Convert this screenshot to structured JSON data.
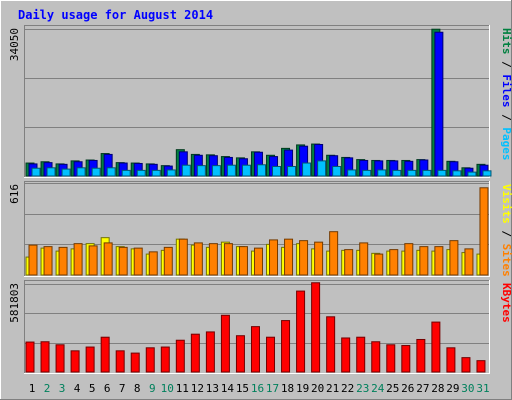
{
  "chart_data": {
    "type": "bar",
    "title": "Daily usage for August 2014",
    "categories": [
      "1",
      "2",
      "3",
      "4",
      "5",
      "6",
      "7",
      "8",
      "9",
      "10",
      "11",
      "12",
      "13",
      "14",
      "15",
      "16",
      "17",
      "18",
      "19",
      "20",
      "21",
      "22",
      "23",
      "24",
      "25",
      "26",
      "27",
      "28",
      "29",
      "30",
      "31"
    ],
    "weekend_days": [
      "2",
      "3",
      "9",
      "10",
      "16",
      "17",
      "23",
      "24",
      "30",
      "31"
    ],
    "panels": [
      {
        "id": "hits",
        "ymax_label": "34050",
        "ymax": 34050,
        "legend": [
          "Hits",
          "Files",
          "Pages"
        ],
        "series": [
          {
            "name": "Hits",
            "color": "#008040",
            "values": [
              3000,
              3300,
              2800,
              3500,
              3700,
              5200,
              3100,
              3000,
              2800,
              2400,
              6100,
              5000,
              4900,
              4500,
              4200,
              5600,
              4800,
              6400,
              7200,
              7400,
              4800,
              4300,
              3800,
              3600,
              3600,
              3600,
              3800,
              34000,
              3400,
              1900,
              2700
            ]
          },
          {
            "name": "Files",
            "color": "#0000ff",
            "values": [
              2800,
              3100,
              2700,
              3300,
              3600,
              5000,
              3000,
              2900,
              2700,
              2300,
              5600,
              4800,
              4700,
              4300,
              4000,
              5500,
              4500,
              6000,
              6900,
              7300,
              4700,
              4200,
              3600,
              3500,
              3500,
              3400,
              3700,
              33300,
              3300,
              1800,
              2500
            ]
          },
          {
            "name": "Pages",
            "color": "#00c0ff",
            "values": [
              1800,
              1900,
              1600,
              1900,
              1800,
              1900,
              1300,
              1300,
              1300,
              1400,
              2500,
              2400,
              2400,
              2500,
              2500,
              2600,
              2200,
              2200,
              3000,
              3500,
              2200,
              1400,
              1300,
              1400,
              1300,
              1300,
              1300,
              1300,
              1200,
              900,
              1200
            ]
          }
        ]
      },
      {
        "id": "visits",
        "ymax_label": "616",
        "ymax": 616,
        "legend": [
          "Visits",
          "Sites"
        ],
        "series": [
          {
            "name": "Visits",
            "color": "#ffff00",
            "values": [
              120,
              180,
              160,
              175,
              210,
              250,
              190,
              175,
              140,
              165,
              240,
              200,
              185,
              220,
              190,
              160,
              205,
              185,
              210,
              175,
              160,
              165,
              165,
              145,
              160,
              160,
              165,
              160,
              170,
              150,
              140
            ]
          },
          {
            "name": "Sites",
            "color": "#ff8000",
            "values": [
              200,
              190,
              185,
              210,
              195,
              215,
              185,
              180,
              155,
              185,
              240,
              215,
              210,
              210,
              190,
              180,
              235,
              240,
              230,
              220,
              290,
              170,
              215,
              140,
              170,
              210,
              190,
              190,
              230,
              175,
              584
            ]
          }
        ]
      },
      {
        "id": "kbytes",
        "ymax_label": "581803",
        "ymax": 581803,
        "legend": [
          "KBytes"
        ],
        "series": [
          {
            "name": "KBytes",
            "color": "#ff0000",
            "values": [
              198000,
              200000,
              180000,
              140000,
              165000,
              230000,
              140000,
              125000,
              160000,
              165000,
              210000,
              250000,
              265000,
              375000,
              240000,
              300000,
              230000,
              340000,
              535000,
              590000,
              365000,
              225000,
              230000,
              200000,
              180000,
              175000,
              215000,
              330000,
              160000,
              95000,
              75000
            ]
          }
        ]
      }
    ]
  },
  "colors": {
    "page_bg": "#c0c0c0",
    "plot_bg": "#c0c0c0",
    "title": "#0000ff",
    "weekday_label": "#000000",
    "weekend_label": "#00805c"
  }
}
